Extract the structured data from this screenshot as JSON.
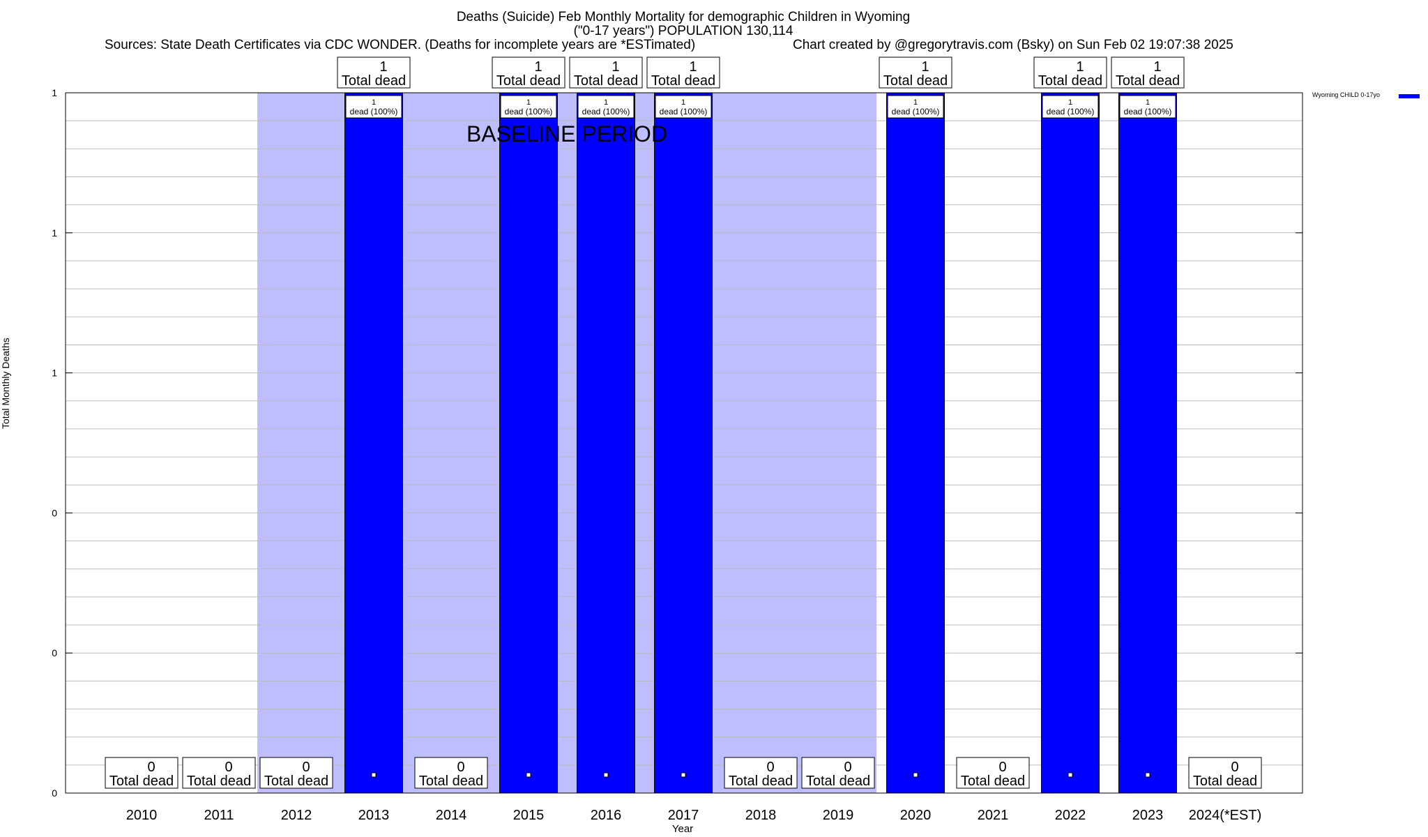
{
  "header": {
    "title_line1": "Deaths (Suicide) Feb Monthly Mortality for demographic Children in Wyoming",
    "title_line2": "(\"0-17 years\") POPULATION 130,114",
    "sources": "Sources: State Death Certificates via CDC WONDER. (Deaths for incomplete years are *ESTimated)",
    "created_by": "Chart created by @gregorytravis.com (Bsky) on Sun Feb 02 19:07:38 2025"
  },
  "chart_data": {
    "type": "bar",
    "xlabel": "Year",
    "ylabel": "Total Monthly Deaths",
    "ylim": [
      0,
      1
    ],
    "y_tick_labels": [
      "0",
      "0",
      "0",
      "1",
      "1",
      "1"
    ],
    "grid": true,
    "legend_position": "top-right",
    "categories": [
      "2010",
      "2011",
      "2012",
      "2013",
      "2014",
      "2015",
      "2016",
      "2017",
      "2018",
      "2019",
      "2020",
      "2021",
      "2022",
      "2023",
      "2024(*EST)"
    ],
    "series": [
      {
        "name": "Wyoming CHILD 0-17yo",
        "color": "#0000ff",
        "values": [
          0,
          0,
          0,
          1,
          0,
          1,
          1,
          1,
          0,
          0,
          1,
          0,
          1,
          1,
          0
        ]
      }
    ],
    "total_label_suffix": "Total dead",
    "bar_label_suffix": "dead (100%)",
    "baseline": {
      "label": "BASELINE PERIOD",
      "start": "2012",
      "end": "2019",
      "color": "#bebeff"
    }
  }
}
